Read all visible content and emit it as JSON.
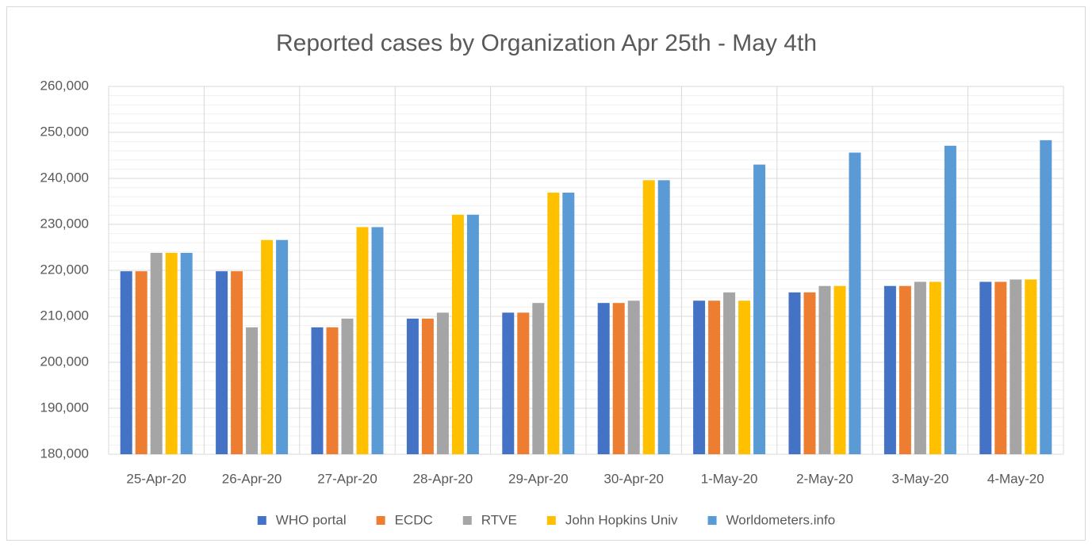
{
  "chart_data": {
    "type": "bar",
    "title": "Reported cases by Organization Apr 25th - May 4th",
    "categories": [
      "25-Apr-20",
      "26-Apr-20",
      "27-Apr-20",
      "28-Apr-20",
      "29-Apr-20",
      "30-Apr-20",
      "1-May-20",
      "2-May-20",
      "3-May-20",
      "4-May-20"
    ],
    "series": [
      {
        "name": "WHO portal",
        "color": "#4472c4",
        "values": [
          219800,
          219800,
          207600,
          209500,
          210800,
          212900,
          213400,
          215200,
          216600,
          217500
        ]
      },
      {
        "name": "ECDC",
        "color": "#ed7d31",
        "values": [
          219800,
          219800,
          207600,
          209500,
          210800,
          212900,
          213400,
          215200,
          216600,
          217500
        ]
      },
      {
        "name": "RTVE",
        "color": "#a5a5a5",
        "values": [
          223800,
          207600,
          209500,
          210800,
          212900,
          213400,
          215200,
          216600,
          217500,
          218000
        ]
      },
      {
        "name": "John Hopkins Univ",
        "color": "#ffc000",
        "values": [
          223800,
          226600,
          229400,
          232100,
          236900,
          239600,
          213400,
          216600,
          217500,
          218000
        ]
      },
      {
        "name": "Worldometers.info",
        "color": "#5b9bd5",
        "values": [
          223800,
          226600,
          229400,
          232100,
          236900,
          239600,
          243000,
          245600,
          247100,
          248300
        ]
      }
    ],
    "ylim": [
      180000,
      260000
    ],
    "yticks": [
      {
        "value": 180000,
        "label": "180,000"
      },
      {
        "value": 190000,
        "label": "190,000"
      },
      {
        "value": 200000,
        "label": "200,000"
      },
      {
        "value": 210000,
        "label": "210,000"
      },
      {
        "value": 220000,
        "label": "220,000"
      },
      {
        "value": 230000,
        "label": "230,000"
      },
      {
        "value": 240000,
        "label": "240,000"
      },
      {
        "value": 250000,
        "label": "250,000"
      },
      {
        "value": 260000,
        "label": "260,000"
      }
    ],
    "grid": true,
    "minor_grid_step": 2000,
    "legend": "bottom"
  }
}
